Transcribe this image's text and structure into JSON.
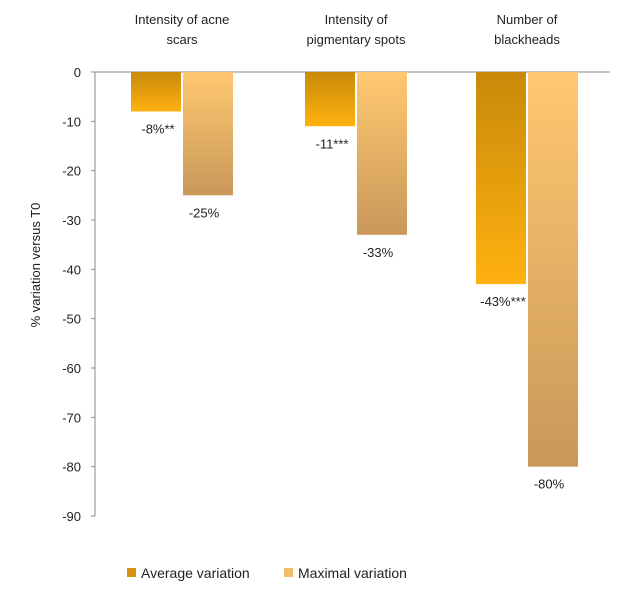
{
  "chart_data": {
    "type": "bar",
    "title": "",
    "xlabel": "",
    "ylabel": "% variation versus T0",
    "ylim": [
      -90,
      0
    ],
    "yticks": [
      0,
      -10,
      -20,
      -30,
      -40,
      -50,
      -60,
      -70,
      -80,
      -90
    ],
    "grid": false,
    "legend_position": "bottom",
    "categories": [
      [
        "Intensity of acne",
        "scars"
      ],
      [
        "Intensity of",
        "pigmentary spots"
      ],
      [
        "Number of",
        "blackheads"
      ]
    ],
    "series": [
      {
        "name": "Average variation",
        "values": [
          -8,
          -11,
          -43
        ],
        "labels": [
          "-8%**",
          "-11***",
          "-43%***"
        ],
        "color": "#E8A317"
      },
      {
        "name": "Maximal variation",
        "values": [
          -25,
          -33,
          -80
        ],
        "labels": [
          "-25%",
          "-33%",
          "-80%"
        ],
        "color": "#F5C26B"
      }
    ]
  }
}
